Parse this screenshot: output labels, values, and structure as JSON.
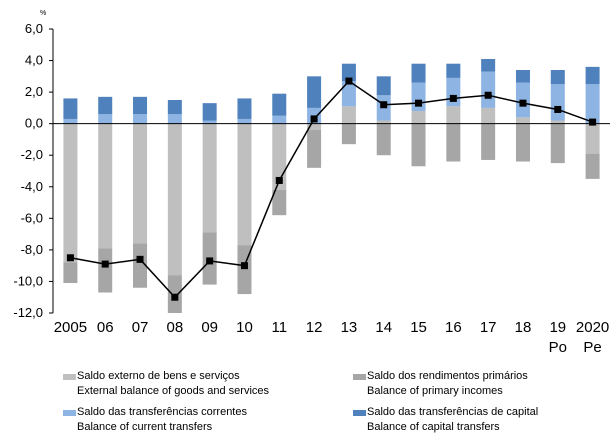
{
  "chart_data": {
    "type": "bar",
    "unit_label": "%",
    "ylim": [
      -12,
      6
    ],
    "yticks": [
      "6,0",
      "4,0",
      "2,0",
      "0,0",
      "-2,0",
      "-4,0",
      "-6,0",
      "-8,0",
      "-10,0",
      "-12,0"
    ],
    "ytick_values": [
      6,
      4,
      2,
      0,
      -2,
      -4,
      -6,
      -8,
      -10,
      -12
    ],
    "categories": [
      {
        "label": "2005",
        "sub": ""
      },
      {
        "label": "06",
        "sub": ""
      },
      {
        "label": "07",
        "sub": ""
      },
      {
        "label": "08",
        "sub": ""
      },
      {
        "label": "09",
        "sub": ""
      },
      {
        "label": "10",
        "sub": ""
      },
      {
        "label": "11",
        "sub": ""
      },
      {
        "label": "12",
        "sub": ""
      },
      {
        "label": "13",
        "sub": ""
      },
      {
        "label": "14",
        "sub": ""
      },
      {
        "label": "15",
        "sub": ""
      },
      {
        "label": "16",
        "sub": ""
      },
      {
        "label": "17",
        "sub": ""
      },
      {
        "label": "18",
        "sub": ""
      },
      {
        "label": "19",
        "sub": "Po"
      },
      {
        "label": "2020",
        "sub": "Pe"
      }
    ],
    "series": [
      {
        "name_pt": "Saldo externo de bens e serviços",
        "name_en": "External balance of goods and services",
        "type": "stacked-bar",
        "color": "#bfbfbf",
        "values": [
          -8.8,
          -7.9,
          -7.6,
          -9.6,
          -6.9,
          -7.7,
          -4.2,
          -0.4,
          1.1,
          0.2,
          0.8,
          1.1,
          1.0,
          0.4,
          0.2,
          -1.9
        ]
      },
      {
        "name_pt": "Saldo dos rendimentos primários",
        "name_en": "Balance of primary incomes",
        "type": "stacked-bar",
        "color": "#a6a6a6",
        "values": [
          -1.3,
          -2.8,
          -2.8,
          -2.4,
          -3.3,
          -3.1,
          -1.6,
          -2.4,
          -1.3,
          -2.0,
          -2.7,
          -2.4,
          -2.3,
          -2.4,
          -2.5,
          -1.6
        ]
      },
      {
        "name_pt": "Saldo das transferências correntes",
        "name_en": "Balance of current transfers",
        "type": "stacked-bar",
        "color": "#8db4e2",
        "values": [
          0.3,
          0.6,
          0.6,
          0.6,
          0.2,
          0.3,
          0.5,
          1.0,
          1.6,
          1.6,
          1.8,
          1.8,
          2.3,
          2.2,
          2.3,
          2.5
        ]
      },
      {
        "name_pt": "Saldo das transferências de capital",
        "name_en": "Balance of capital transfers",
        "type": "stacked-bar",
        "color": "#4f81bd",
        "values": [
          1.3,
          1.1,
          1.1,
          0.9,
          1.1,
          1.3,
          1.4,
          2.0,
          1.1,
          1.2,
          1.2,
          0.9,
          0.8,
          0.8,
          0.9,
          1.1
        ]
      },
      {
        "name_pt": "",
        "name_en": "",
        "type": "line",
        "color": "#000000",
        "values": [
          -8.5,
          -8.9,
          -8.6,
          -11.0,
          -8.7,
          -9.0,
          -3.6,
          0.3,
          2.7,
          1.2,
          1.3,
          1.6,
          1.8,
          1.3,
          0.9,
          0.1
        ]
      }
    ]
  }
}
